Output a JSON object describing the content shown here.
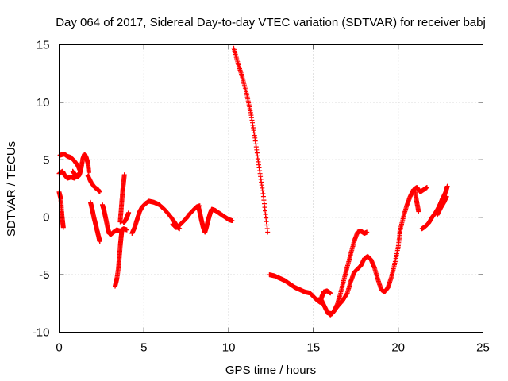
{
  "chart_data": {
    "type": "scatter",
    "title": "Day 064 of 2017, Sidereal Day-to-day VTEC variation (SDTVAR) for receiver babj",
    "xlabel": "GPS time / hours",
    "ylabel": "SDTVAR / TECUs",
    "xlim": [
      0,
      25
    ],
    "ylim": [
      -10,
      15
    ],
    "xticks": [
      0,
      5,
      10,
      15,
      20,
      25
    ],
    "yticks": [
      -10,
      -5,
      0,
      5,
      10,
      15
    ],
    "xtick_labels": [
      "0",
      "5",
      "10",
      "15",
      "20",
      "25"
    ],
    "ytick_labels": [
      "-10",
      "-5",
      "0",
      "5",
      "10",
      "15"
    ],
    "grid": true,
    "marker": "+",
    "color": "#ff0000",
    "series": [
      {
        "name": "SDTVAR",
        "traces": [
          [
            [
              0.0,
              2.2
            ],
            [
              0.1,
              1.6
            ],
            [
              0.15,
              0.5
            ],
            [
              0.2,
              -0.3
            ],
            [
              0.25,
              -0.9
            ]
          ],
          [
            [
              0.05,
              5.4
            ],
            [
              0.3,
              5.5
            ],
            [
              0.5,
              5.3
            ],
            [
              0.7,
              5.2
            ],
            [
              0.9,
              4.9
            ],
            [
              1.1,
              4.5
            ],
            [
              1.25,
              4.0
            ]
          ],
          [
            [
              0.0,
              3.8
            ],
            [
              0.2,
              4.0
            ],
            [
              0.35,
              3.6
            ],
            [
              0.5,
              3.4
            ],
            [
              0.7,
              3.5
            ],
            [
              0.9,
              3.4
            ],
            [
              1.1,
              3.7
            ]
          ],
          [
            [
              0.8,
              4.0
            ],
            [
              0.95,
              3.7
            ],
            [
              1.1,
              3.5
            ],
            [
              1.2,
              3.7
            ],
            [
              1.3,
              4.3
            ],
            [
              1.4,
              5.1
            ],
            [
              1.5,
              5.5
            ],
            [
              1.6,
              5.2
            ],
            [
              1.7,
              4.7
            ],
            [
              1.75,
              3.9
            ]
          ],
          [
            [
              1.7,
              3.6
            ],
            [
              1.9,
              3.0
            ],
            [
              2.1,
              2.6
            ],
            [
              2.3,
              2.4
            ],
            [
              2.4,
              2.2
            ]
          ],
          [
            [
              1.85,
              1.3
            ],
            [
              1.95,
              0.7
            ],
            [
              2.05,
              0.0
            ],
            [
              2.15,
              -0.6
            ],
            [
              2.25,
              -1.2
            ],
            [
              2.35,
              -1.8
            ],
            [
              2.4,
              -2.1
            ]
          ],
          [
            [
              2.55,
              1.1
            ],
            [
              2.65,
              0.6
            ],
            [
              2.75,
              -0.1
            ],
            [
              2.85,
              -0.8
            ],
            [
              2.95,
              -1.4
            ],
            [
              3.05,
              -1.5
            ],
            [
              3.2,
              -1.3
            ],
            [
              3.4,
              -1.1
            ],
            [
              3.6,
              -1.2
            ],
            [
              3.8,
              -1.0
            ],
            [
              4.0,
              -1.1
            ]
          ],
          [
            [
              3.3,
              -6.0
            ],
            [
              3.4,
              -5.4
            ],
            [
              3.5,
              -4.4
            ],
            [
              3.55,
              -3.5
            ],
            [
              3.6,
              -2.6
            ],
            [
              3.65,
              -1.8
            ],
            [
              3.7,
              -1.2
            ]
          ],
          [
            [
              3.6,
              -0.4
            ],
            [
              3.65,
              0.5
            ],
            [
              3.7,
              1.4
            ],
            [
              3.75,
              2.3
            ],
            [
              3.8,
              3.0
            ],
            [
              3.85,
              3.7
            ]
          ],
          [
            [
              3.8,
              -0.5
            ],
            [
              3.9,
              -0.3
            ],
            [
              4.0,
              0.0
            ],
            [
              4.1,
              0.4
            ]
          ],
          [
            [
              4.3,
              -1.4
            ],
            [
              4.45,
              -0.9
            ],
            [
              4.6,
              -0.2
            ],
            [
              4.75,
              0.5
            ],
            [
              4.9,
              0.9
            ],
            [
              5.1,
              1.2
            ],
            [
              5.3,
              1.4
            ],
            [
              5.6,
              1.3
            ],
            [
              5.9,
              1.1
            ],
            [
              6.2,
              0.7
            ],
            [
              6.5,
              0.2
            ],
            [
              6.8,
              -0.4
            ],
            [
              7.0,
              -0.9
            ],
            [
              7.1,
              -1.0
            ]
          ],
          [
            [
              6.7,
              -0.6
            ],
            [
              6.9,
              -0.9
            ],
            [
              7.1,
              -0.7
            ],
            [
              7.3,
              -0.4
            ],
            [
              7.5,
              -0.1
            ],
            [
              7.7,
              0.3
            ],
            [
              7.9,
              0.6
            ],
            [
              8.1,
              0.9
            ],
            [
              8.3,
              1.0
            ]
          ],
          [
            [
              8.2,
              1.0
            ],
            [
              8.3,
              0.4
            ],
            [
              8.4,
              -0.3
            ],
            [
              8.5,
              -0.9
            ],
            [
              8.6,
              -1.3
            ],
            [
              8.7,
              -0.8
            ],
            [
              8.8,
              -0.2
            ],
            [
              8.9,
              0.3
            ],
            [
              9.0,
              0.7
            ],
            [
              9.2,
              0.6
            ],
            [
              9.4,
              0.4
            ],
            [
              9.6,
              0.2
            ],
            [
              9.8,
              0.0
            ],
            [
              10.0,
              -0.2
            ],
            [
              10.2,
              -0.3
            ]
          ],
          [
            [
              10.3,
              14.7
            ],
            [
              10.55,
              13.4
            ],
            [
              10.8,
              12.2
            ],
            [
              11.05,
              10.8
            ],
            [
              11.3,
              9.1
            ],
            [
              11.55,
              6.9
            ],
            [
              11.8,
              4.3
            ],
            [
              12.05,
              1.8
            ],
            [
              12.3,
              -1.3
            ]
          ],
          [
            [
              12.4,
              -5.0
            ],
            [
              12.7,
              -5.1
            ],
            [
              13.0,
              -5.3
            ],
            [
              13.3,
              -5.5
            ],
            [
              13.6,
              -5.8
            ],
            [
              13.9,
              -6.1
            ],
            [
              14.2,
              -6.3
            ],
            [
              14.5,
              -6.5
            ],
            [
              14.8,
              -6.6
            ],
            [
              15.0,
              -6.9
            ],
            [
              15.2,
              -7.2
            ],
            [
              15.4,
              -7.4
            ],
            [
              15.5,
              -6.9
            ],
            [
              15.6,
              -6.5
            ],
            [
              15.8,
              -6.4
            ],
            [
              16.0,
              -6.6
            ]
          ],
          [
            [
              15.4,
              -7.0
            ],
            [
              15.6,
              -7.6
            ],
            [
              15.8,
              -8.2
            ],
            [
              16.0,
              -8.5
            ],
            [
              16.2,
              -8.2
            ],
            [
              16.4,
              -7.6
            ],
            [
              16.6,
              -6.6
            ],
            [
              16.8,
              -5.4
            ],
            [
              17.0,
              -4.3
            ],
            [
              17.2,
              -3.2
            ],
            [
              17.4,
              -2.1
            ],
            [
              17.6,
              -1.3
            ],
            [
              17.8,
              -1.2
            ],
            [
              18.0,
              -1.4
            ],
            [
              18.15,
              -1.3
            ]
          ],
          [
            [
              15.8,
              -8.3
            ],
            [
              16.1,
              -8.4
            ],
            [
              16.4,
              -7.8
            ],
            [
              16.7,
              -7.3
            ],
            [
              17.0,
              -6.6
            ],
            [
              17.2,
              -5.6
            ],
            [
              17.4,
              -4.8
            ],
            [
              17.6,
              -4.5
            ],
            [
              17.8,
              -4.2
            ],
            [
              18.0,
              -3.6
            ],
            [
              18.2,
              -3.4
            ],
            [
              18.4,
              -3.7
            ],
            [
              18.6,
              -4.4
            ],
            [
              18.8,
              -5.4
            ],
            [
              19.0,
              -6.3
            ],
            [
              19.2,
              -6.5
            ],
            [
              19.4,
              -6.1
            ],
            [
              19.6,
              -5.2
            ],
            [
              19.8,
              -4.0
            ],
            [
              20.0,
              -2.6
            ],
            [
              20.1,
              -1.3
            ]
          ],
          [
            [
              20.1,
              -1.2
            ],
            [
              20.3,
              0.0
            ],
            [
              20.5,
              1.0
            ],
            [
              20.7,
              1.8
            ],
            [
              20.9,
              2.4
            ],
            [
              21.1,
              2.6
            ],
            [
              21.3,
              2.2
            ],
            [
              21.5,
              2.4
            ],
            [
              21.7,
              2.6
            ]
          ],
          [
            [
              21.0,
              2.2
            ],
            [
              21.1,
              1.3
            ],
            [
              21.2,
              0.5
            ]
          ],
          [
            [
              21.4,
              -1.0
            ],
            [
              21.6,
              -0.8
            ],
            [
              21.8,
              -0.5
            ],
            [
              22.0,
              0.0
            ],
            [
              22.2,
              0.4
            ],
            [
              22.4,
              0.9
            ],
            [
              22.6,
              1.6
            ],
            [
              22.8,
              2.2
            ],
            [
              22.9,
              2.7
            ]
          ],
          [
            [
              22.3,
              0.2
            ],
            [
              22.5,
              0.8
            ],
            [
              22.7,
              1.3
            ],
            [
              22.85,
              1.8
            ]
          ]
        ]
      }
    ]
  }
}
